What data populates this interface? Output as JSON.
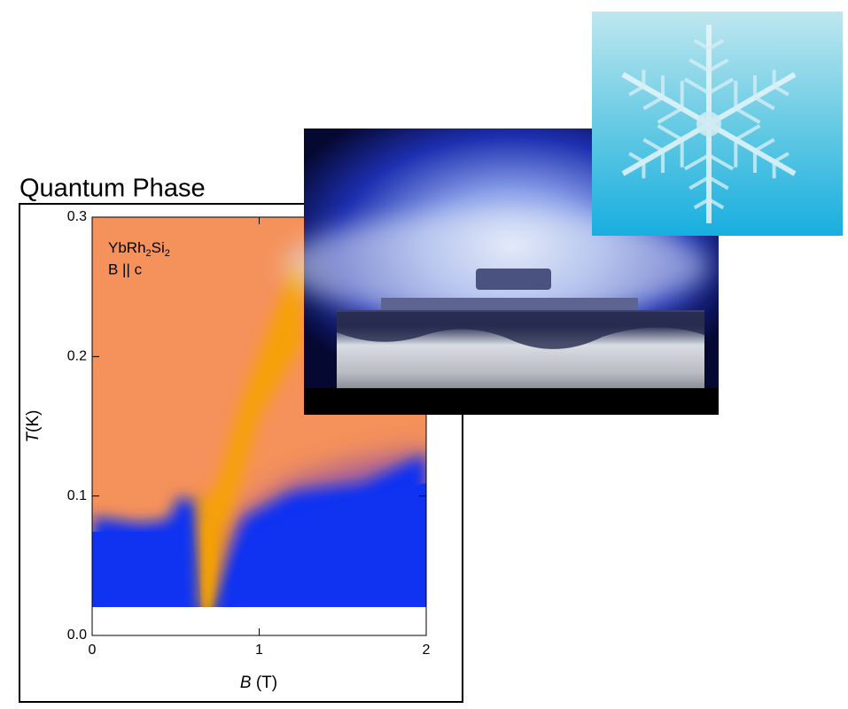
{
  "title": "Quantum Phase",
  "chart_data": {
    "type": "phase-diagram",
    "compound": [
      "YbRh",
      "2",
      "Si",
      "2"
    ],
    "field_direction": "B || c",
    "x_label": {
      "symbol": "B",
      "unit": "(T)"
    },
    "y_label": {
      "symbol": "T",
      "unit": "(K)"
    },
    "xlim": [
      0,
      2
    ],
    "xticks": [
      0,
      1,
      2
    ],
    "ylim": [
      0,
      0.3
    ],
    "yticks": [
      {
        "value": 0,
        "label": "0.0"
      },
      0.1,
      0.2,
      0.3
    ]
  }
}
